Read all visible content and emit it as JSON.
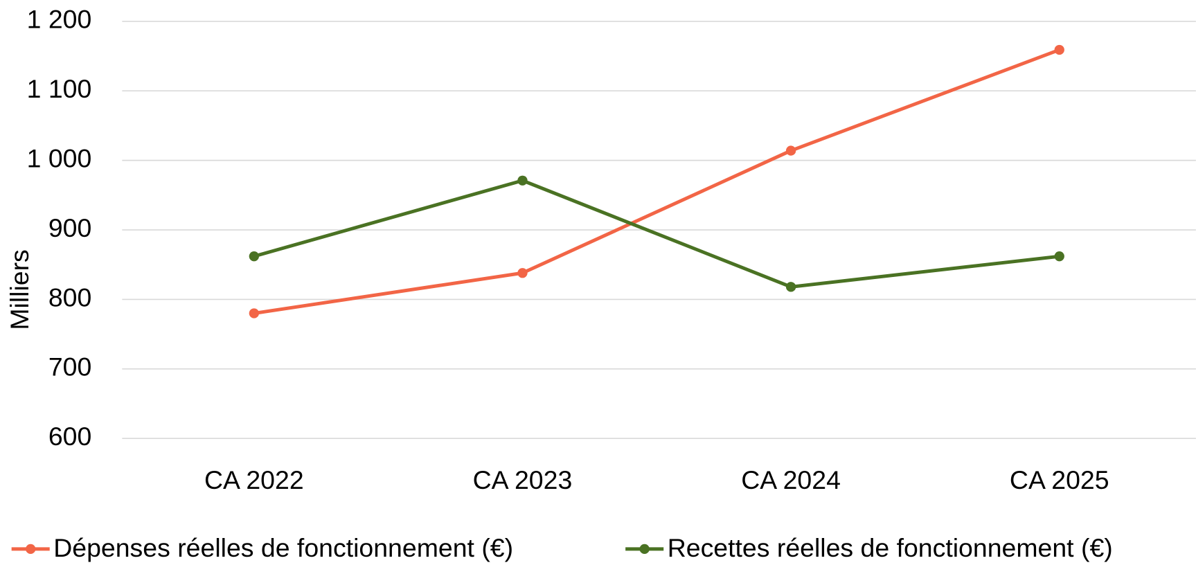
{
  "chart_data": {
    "type": "line",
    "y_label": "Milliers",
    "categories": [
      "CA 2022",
      "CA 2023",
      "CA 2024",
      "CA 2025"
    ],
    "series": [
      {
        "name": "Dépenses réelles de fonctionnement (€)",
        "color": "#f26546",
        "values": [
          780,
          838,
          1014,
          1159
        ]
      },
      {
        "name": "Recettes réelles de fonctionnement (€)",
        "color": "#4a7223",
        "values": [
          862,
          971,
          818,
          862
        ]
      }
    ],
    "ylim": [
      600,
      1200
    ],
    "yticks": [
      600,
      700,
      800,
      900,
      {
        "value": 1000,
        "label": "1 000"
      },
      {
        "value": 1100,
        "label": "1 100"
      },
      {
        "value": 1200,
        "label": "1 200"
      }
    ],
    "grid": true,
    "legend": "bottom"
  }
}
